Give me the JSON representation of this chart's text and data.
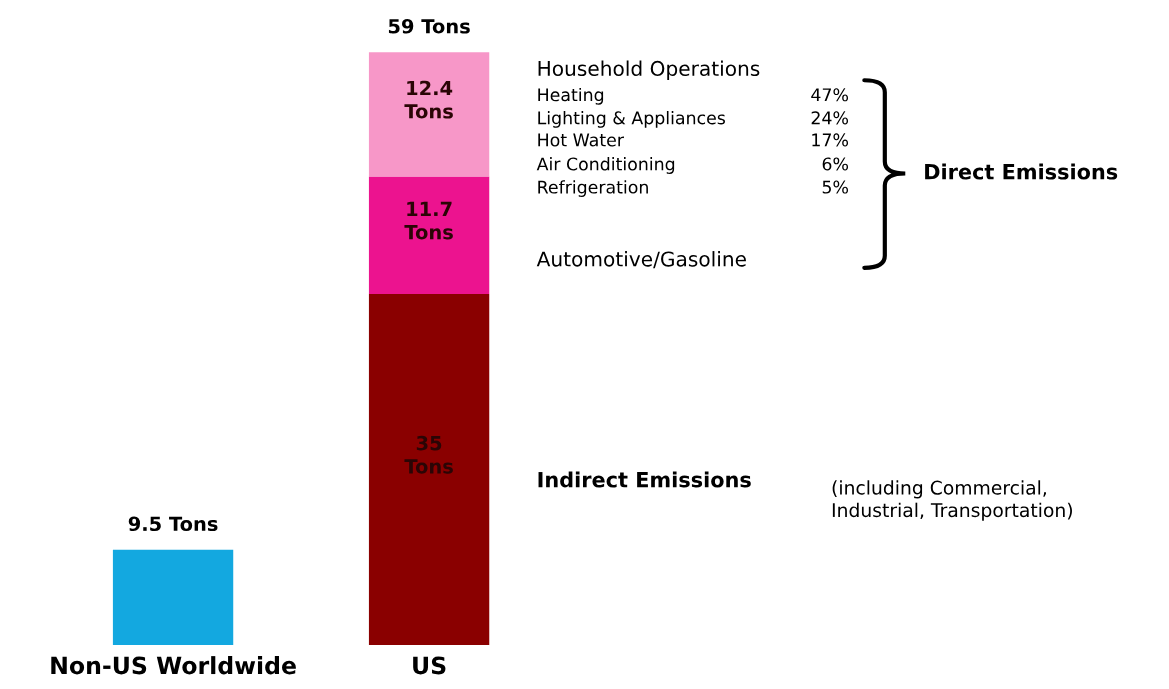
{
  "chart_data": {
    "type": "bar",
    "stacked": true,
    "categories": [
      "Non-US Worldwide",
      "US"
    ],
    "series": [
      {
        "color": "#13a8e0",
        "values": [
          9.5,
          null
        ],
        "value_labels": [
          null,
          null
        ]
      },
      {
        "color": "#8a0000",
        "values": [
          null,
          35
        ],
        "value_labels": [
          null,
          "35\nTons"
        ]
      },
      {
        "color": "#ec138f",
        "values": [
          null,
          11.7
        ],
        "value_labels": [
          null,
          "11.7\nTons"
        ]
      },
      {
        "color": "#f797c8",
        "values": [
          null,
          12.4
        ],
        "value_labels": [
          null,
          "12.4\nTons"
        ]
      }
    ],
    "totals": [
      "9.5 Tons",
      "59 Tons"
    ],
    "annotations": [
      "Household Operations",
      "Heating",
      "47%",
      "Lighting & Appliances",
      "24%",
      "Hot Water",
      "17%",
      "Air Conditioning",
      "6%",
      "Refrigeration",
      "5%",
      "Automotive/Gasoline",
      "Direct Emissions",
      "Indirect Emissions",
      "(including Commercial,\nIndustrial, Transportation)"
    ]
  }
}
